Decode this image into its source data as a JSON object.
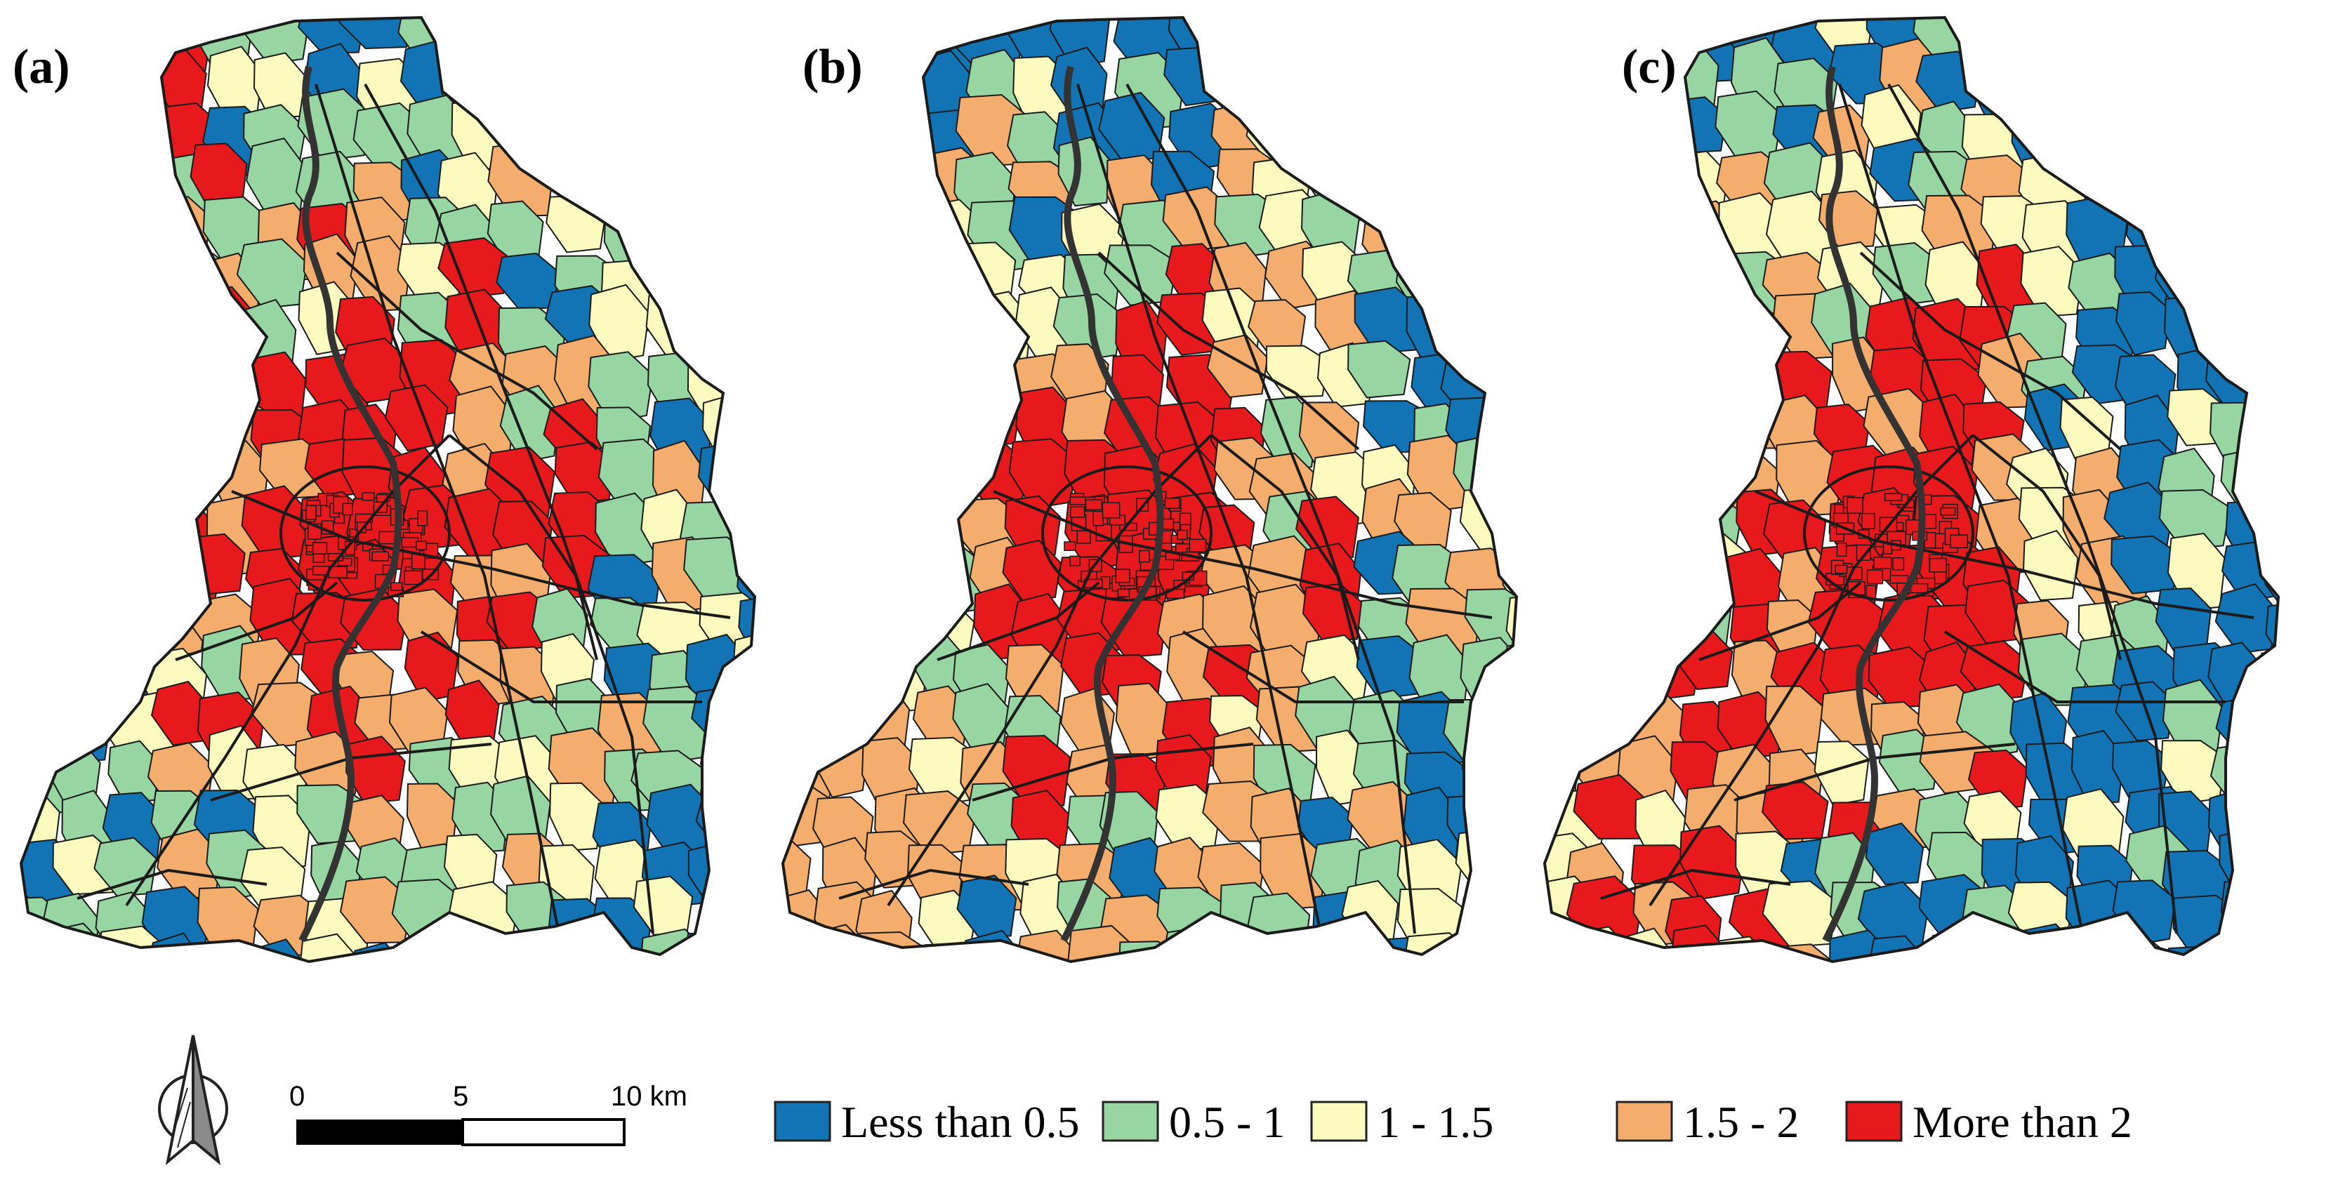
{
  "figure": {
    "panels": [
      {
        "label": "(a)",
        "variant": 0
      },
      {
        "label": "(b)",
        "variant": 1
      },
      {
        "label": "(c)",
        "variant": 2
      }
    ],
    "legend": {
      "items": [
        {
          "label": "Less than 0.5",
          "color": "#1273b5"
        },
        {
          "label": "0.5 - 1",
          "color": "#97d6a2"
        },
        {
          "label": "1 - 1.5",
          "color": "#fbfbc0"
        },
        {
          "label": "1.5 - 2",
          "color": "#f5ad6e"
        },
        {
          "label": "More than 2",
          "color": "#e8191c"
        }
      ]
    },
    "scale_bar": {
      "ticks": [
        "0",
        "5",
        "10 km"
      ]
    },
    "colors": {
      "outline": "#1b1b1b",
      "river": "#333333",
      "background": "#ffffff"
    },
    "icons": {
      "north_arrow": "north-arrow-icon"
    }
  }
}
